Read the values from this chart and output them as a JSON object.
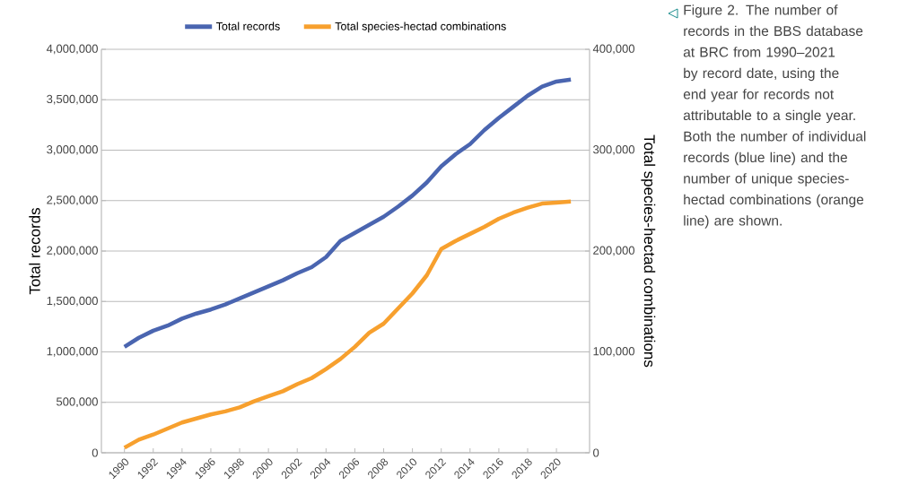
{
  "chart_data": {
    "type": "line",
    "x": [
      1990,
      1991,
      1992,
      1993,
      1994,
      1995,
      1996,
      1997,
      1998,
      1999,
      2000,
      2001,
      2002,
      2003,
      2004,
      2005,
      2006,
      2007,
      2008,
      2009,
      2010,
      2011,
      2012,
      2013,
      2014,
      2015,
      2016,
      2017,
      2018,
      2019,
      2020,
      2021
    ],
    "series": [
      {
        "name": "Total records",
        "color": "#4a65b0",
        "values": [
          1050000,
          1140000,
          1210000,
          1260000,
          1330000,
          1380000,
          1420000,
          1470000,
          1530000,
          1590000,
          1650000,
          1710000,
          1780000,
          1840000,
          1940000,
          2100000,
          2180000,
          2260000,
          2340000,
          2440000,
          2550000,
          2680000,
          2840000,
          2960000,
          3060000,
          3200000,
          3320000,
          3430000,
          3540000,
          3630000,
          3680000,
          3700000
        ]
      },
      {
        "name": "Total species-hectad combinations",
        "color": "#f7a02e",
        "axis": "y2",
        "values": [
          5000,
          13000,
          18000,
          24000,
          30000,
          34000,
          38000,
          41000,
          45000,
          51000,
          56000,
          61000,
          68000,
          74000,
          83000,
          93000,
          105000,
          119000,
          128000,
          143000,
          158000,
          176000,
          202000,
          210000,
          217000,
          224000,
          232000,
          238000,
          243000,
          247000,
          248000,
          249000
        ]
      }
    ],
    "ylabel": "Total records",
    "y2label": "Total species-hectad combinations",
    "xlim": [
      1988.4,
      2022.3
    ],
    "xticks": [
      1990,
      1992,
      1994,
      1996,
      1998,
      2000,
      2002,
      2004,
      2006,
      2008,
      2010,
      2012,
      2014,
      2016,
      2018,
      2020
    ],
    "ylim": [
      0,
      4000000
    ],
    "yticks": [
      {
        "value": 0,
        "label": "0"
      },
      {
        "value": 500000,
        "label": "500,000"
      },
      {
        "value": 1000000,
        "label": "1,000,000"
      },
      {
        "value": 1500000,
        "label": "1,500,000"
      },
      {
        "value": 2000000,
        "label": "2,000,000"
      },
      {
        "value": 2500000,
        "label": "2,500,000"
      },
      {
        "value": 3000000,
        "label": "3,000,000"
      },
      {
        "value": 3500000,
        "label": "3,500,000"
      },
      {
        "value": 4000000,
        "label": "4,000,000"
      }
    ],
    "y2lim": [
      0,
      400000
    ],
    "y2ticks": [
      {
        "value": 0,
        "label": "0"
      },
      {
        "value": 100000,
        "label": "100,000"
      },
      {
        "value": 200000,
        "label": "200,000"
      },
      {
        "value": 300000,
        "label": "300,000"
      },
      {
        "value": 400000,
        "label": "400,000"
      }
    ],
    "grid": "y",
    "legend": "top",
    "marker": "none",
    "line_style": "solid",
    "annotations": [
      "Figure 2. The number of records in the BBS database at BRC from 1990–2021 by record date, using the end year for records not attributable to a single year. Both the number of individual records (blue line) and the number of unique species-hectad combinations (orange line) are shown."
    ]
  }
}
